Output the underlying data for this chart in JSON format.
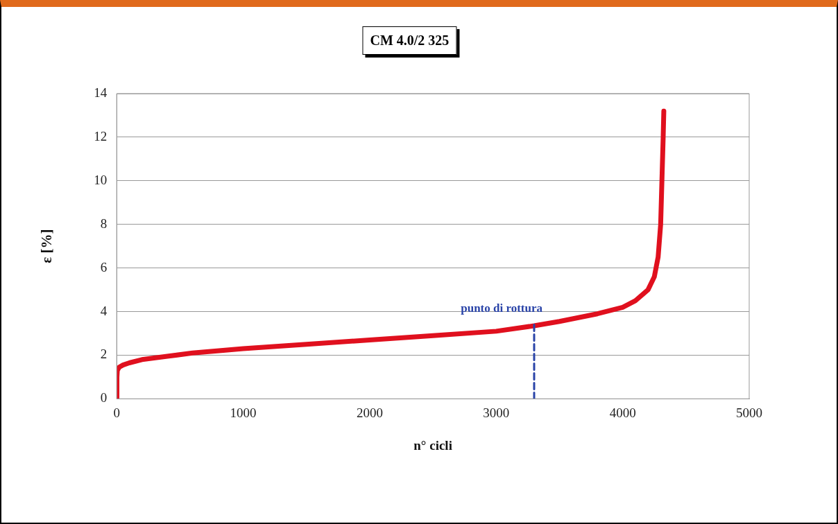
{
  "chart_data": {
    "type": "line",
    "title": "CM 4.0/2 325",
    "xlabel": "n° cicli",
    "ylabel": "ε [%]",
    "xlim": [
      0,
      5000
    ],
    "xticks": [
      0,
      1000,
      2000,
      3000,
      4000,
      5000
    ],
    "ylim": [
      0,
      14
    ],
    "yticks": [
      0,
      2,
      4,
      6,
      8,
      10,
      12,
      14
    ],
    "grid": "y",
    "legend": false,
    "marker": "none",
    "series": [
      {
        "color": "#e0101e",
        "x": [
          0,
          2,
          5,
          20,
          50,
          100,
          200,
          400,
          600,
          1000,
          1500,
          2000,
          2500,
          3000,
          3300,
          3500,
          3800,
          4000,
          4100,
          4200,
          4250,
          4280,
          4300,
          4310,
          4320,
          4325
        ],
        "values": [
          0,
          1.0,
          1.3,
          1.45,
          1.55,
          1.65,
          1.8,
          1.95,
          2.1,
          2.3,
          2.5,
          2.7,
          2.9,
          3.1,
          3.35,
          3.55,
          3.9,
          4.2,
          4.5,
          5.0,
          5.6,
          6.5,
          8,
          10,
          12,
          13.2
        ]
      },
      {
        "type": "line",
        "line_style": "dashed",
        "color": "#2a44a8",
        "x": [
          3300,
          3300
        ],
        "values": [
          3.4,
          0
        ]
      }
    ],
    "annotations": [
      {
        "text": "punto di rottura",
        "x": 3300,
        "y": 3.4
      }
    ]
  }
}
